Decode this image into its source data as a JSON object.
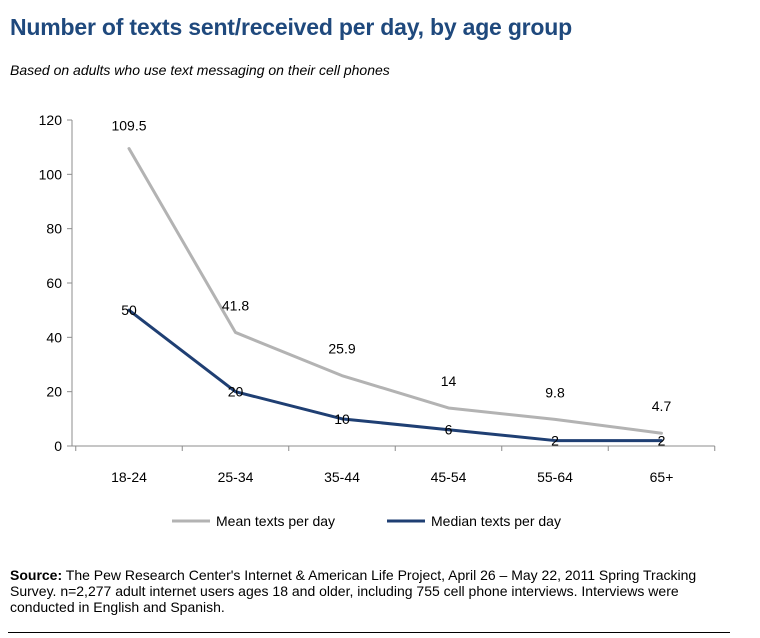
{
  "header": {
    "title": "Number of texts sent/received per day, by age group",
    "subtitle": "Based on adults who use text messaging on their cell phones"
  },
  "chart_data": {
    "type": "line",
    "categories": [
      "18-24",
      "25-34",
      "35-44",
      "45-54",
      "55-64",
      "65+"
    ],
    "series": [
      {
        "name": "Mean texts per day",
        "values": [
          109.5,
          41.8,
          25.9,
          14,
          9.8,
          4.7
        ],
        "labels": [
          "109.5",
          "41.8",
          "25.9",
          "14",
          "9.8",
          "4.7"
        ],
        "color": "#b3b3b3"
      },
      {
        "name": "Median texts per day",
        "values": [
          50,
          20,
          10,
          6,
          2,
          2
        ],
        "labels": [
          "50",
          "20",
          "10",
          "6",
          "2",
          "2"
        ],
        "color": "#1f3f73"
      }
    ],
    "ylim": [
      0,
      120
    ],
    "yticks": [
      0,
      20,
      40,
      60,
      80,
      100,
      120
    ],
    "grid": false,
    "legend": "bottom"
  },
  "source": {
    "label": "Source:",
    "text": "The Pew Research Center's Internet & American Life Project, April 26 – May 22, 2011 Spring Tracking Survey. n=2,277 adult internet users ages 18 and older, including 755 cell phone interviews. Interviews were conducted in English and Spanish."
  }
}
